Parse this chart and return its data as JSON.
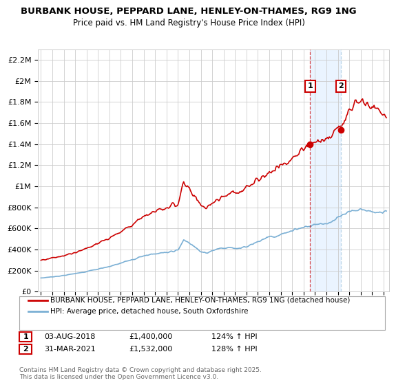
{
  "title1": "BURBANK HOUSE, PEPPARD LANE, HENLEY-ON-THAMES, RG9 1NG",
  "title2": "Price paid vs. HM Land Registry's House Price Index (HPI)",
  "legend1": "BURBANK HOUSE, PEPPARD LANE, HENLEY-ON-THAMES, RG9 1NG (detached house)",
  "legend2": "HPI: Average price, detached house, South Oxfordshire",
  "footnote": "Contains HM Land Registry data © Crown copyright and database right 2025.\nThis data is licensed under the Open Government Licence v3.0.",
  "annotation1_label": "1",
  "annotation1_date": "03-AUG-2018",
  "annotation1_price": "£1,400,000",
  "annotation1_hpi": "124% ↑ HPI",
  "annotation1_year": 2018.58,
  "annotation1_value": 1400000,
  "annotation2_label": "2",
  "annotation2_date": "31-MAR-2021",
  "annotation2_price": "£1,532,000",
  "annotation2_hpi": "128% ↑ HPI",
  "annotation2_year": 2021.25,
  "annotation2_value": 1532000,
  "house_color": "#cc0000",
  "hpi_color": "#7aafd4",
  "vline1_color": "#cc0000",
  "vline2_color": "#7aafd4",
  "highlight_color": "#ddeeff",
  "bg_color": "#ffffff",
  "grid_color": "#cccccc",
  "ylim": [
    0,
    2300000
  ],
  "yticks": [
    0,
    200000,
    400000,
    600000,
    800000,
    1000000,
    1200000,
    1400000,
    1600000,
    1800000,
    2000000,
    2200000
  ],
  "ytick_labels": [
    "£0",
    "£200K",
    "£400K",
    "£600K",
    "£800K",
    "£1M",
    "£1.2M",
    "£1.4M",
    "£1.6M",
    "£1.8M",
    "£2M",
    "£2.2M"
  ],
  "xlim_start": 1994.75,
  "xlim_end": 2025.5
}
